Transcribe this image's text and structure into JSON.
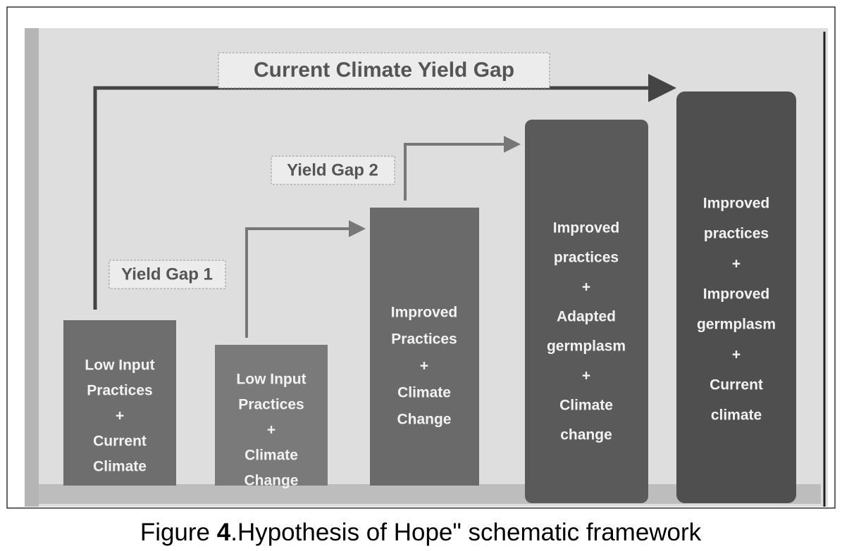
{
  "labels": {
    "current_gap": "Current Climate Yield Gap",
    "gap1": "Yield Gap 1",
    "gap2": "Yield Gap 2"
  },
  "boxes": [
    {
      "lines": [
        "Low Input",
        "Practices",
        "+",
        "Current",
        "Climate"
      ]
    },
    {
      "lines": [
        "Low Input",
        "Practices",
        "+",
        "Climate",
        "Change"
      ]
    },
    {
      "lines": [
        "Improved",
        "Practices",
        "+",
        "Climate",
        "Change"
      ]
    },
    {
      "lines": [
        "Improved",
        "practices",
        "+",
        "Adapted",
        "germplasm",
        "+",
        "Climate",
        "change"
      ]
    },
    {
      "lines": [
        "Improved",
        "practices",
        "+",
        "Improved",
        "germplasm",
        "+",
        "Current",
        "climate"
      ]
    }
  ],
  "caption": {
    "prefix": "Figure ",
    "number": "4",
    "text": ".Hypothesis of Hope\" schematic framework"
  }
}
